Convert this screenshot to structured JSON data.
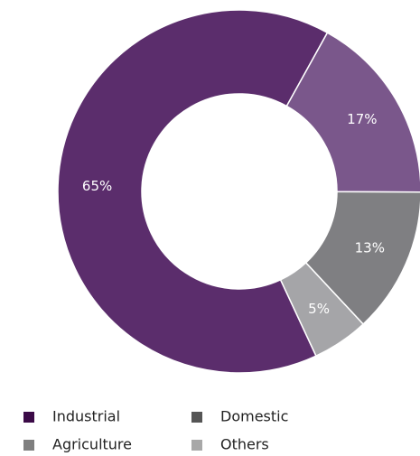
{
  "chart_data": {
    "type": "donut",
    "categories": [
      "Industrial",
      "Agriculture",
      "Domestic",
      "Others"
    ],
    "values": [
      65,
      17,
      13,
      5
    ],
    "value_labels": [
      "65%",
      "17%",
      "13%",
      "5%"
    ],
    "colors": [
      "#5b2d6c",
      "#7a578b",
      "#7f7f82",
      "#a5a5a8"
    ],
    "legend_colors": [
      "#3b0a47",
      "#7f7f7f",
      "#555555",
      "#a8a8a8"
    ],
    "legend": "bottom"
  }
}
